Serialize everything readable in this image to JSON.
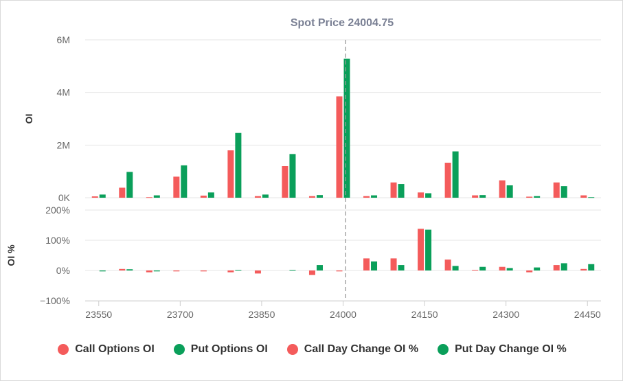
{
  "chart_data": {
    "type": "bar",
    "title": "Spot Price 24004.75",
    "spot_price": 24004.75,
    "x": {
      "min": 23525,
      "max": 24475,
      "ticks": [
        23550,
        23700,
        23850,
        24000,
        24150,
        24300,
        24450
      ],
      "tick_labels": [
        "23550",
        "23700",
        "23850",
        "24000",
        "24150",
        "24300",
        "24450"
      ]
    },
    "strikes": [
      23550,
      23600,
      23650,
      23700,
      23750,
      23800,
      23850,
      23900,
      23950,
      24000,
      24050,
      24100,
      24150,
      24200,
      24250,
      24300,
      24350,
      24400,
      24450
    ],
    "panels": [
      {
        "ylabel": "OI",
        "ylim": [
          0,
          6000000
        ],
        "yticks": [
          0,
          2000000,
          4000000,
          6000000
        ],
        "ytick_labels": [
          "0K",
          "2M",
          "4M",
          "6M"
        ],
        "series": [
          {
            "name": "Call Options OI",
            "color": "#f45b5b",
            "values": [
              50000,
              380000,
              20000,
              800000,
              80000,
              1800000,
              60000,
              1200000,
              60000,
              3850000,
              60000,
              580000,
              200000,
              1330000,
              90000,
              660000,
              40000,
              580000,
              90000
            ]
          },
          {
            "name": "Put Options OI",
            "color": "#0a9f5a",
            "values": [
              120000,
              980000,
              90000,
              1230000,
              200000,
              2460000,
              120000,
              1660000,
              100000,
              5280000,
              90000,
              520000,
              170000,
              1760000,
              100000,
              470000,
              60000,
              440000,
              20000
            ]
          }
        ]
      },
      {
        "ylabel": "OI %",
        "ylim": [
          -100,
          200
        ],
        "yticks": [
          -100,
          0,
          100,
          200
        ],
        "ytick_labels": [
          "−100%",
          "0%",
          "100%",
          "200%"
        ],
        "series": [
          {
            "name": "Call Day Change OI %",
            "color": "#f45b5b",
            "values": [
              0,
              5,
              -6,
              -3,
              -3,
              -6,
              -10,
              0,
              -15,
              -3,
              40,
              40,
              138,
              36,
              2,
              12,
              -6,
              18,
              5
            ]
          },
          {
            "name": "Put Day Change OI %",
            "color": "#0a9f5a",
            "values": [
              -3,
              4,
              -3,
              0,
              0,
              2,
              0,
              2,
              18,
              0,
              30,
              18,
              135,
              15,
              12,
              8,
              10,
              24,
              21
            ]
          }
        ]
      }
    ],
    "legend": {
      "position": "bottom-center",
      "entries": [
        "Call Options OI",
        "Put Options OI",
        "Call Day Change OI %",
        "Put Day Change OI %"
      ]
    },
    "grid": true
  }
}
